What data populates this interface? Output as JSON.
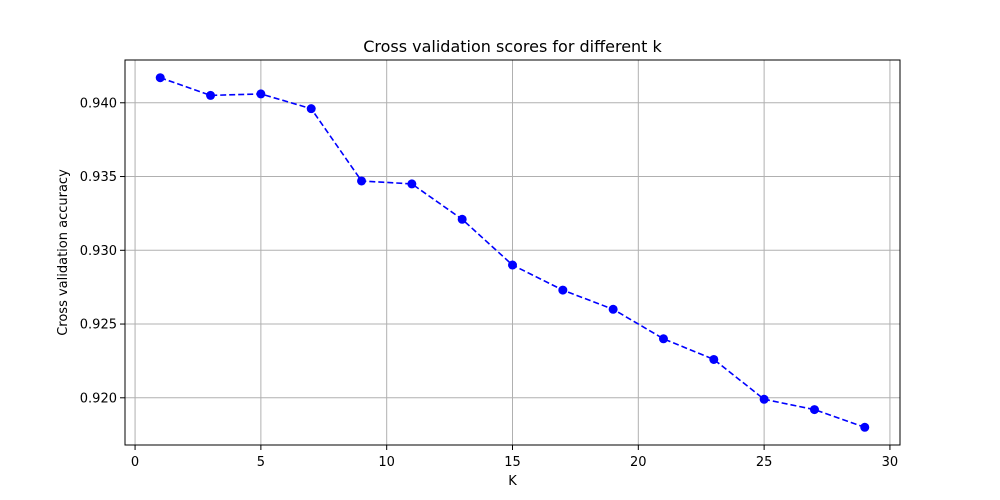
{
  "chart_data": {
    "type": "line",
    "title": "Cross validation scores for different k",
    "xlabel": "K",
    "ylabel": "Cross validation accuracy",
    "xlim": [
      -0.4,
      30.4
    ],
    "ylim": [
      0.9168,
      0.9429
    ],
    "xticks": [
      0,
      5,
      10,
      15,
      20,
      25,
      30
    ],
    "yticks": [
      0.92,
      0.925,
      0.93,
      0.935,
      0.94
    ],
    "xtick_labels": [
      "0",
      "5",
      "10",
      "15",
      "20",
      "25",
      "30"
    ],
    "ytick_labels": [
      "0.920",
      "0.925",
      "0.930",
      "0.935",
      "0.940"
    ],
    "grid": true,
    "series": [
      {
        "style": "dashed line with circle markers",
        "color": "#0000ff",
        "x": [
          1,
          3,
          5,
          7,
          9,
          11,
          13,
          15,
          17,
          19,
          21,
          23,
          25,
          27,
          29
        ],
        "y": [
          0.9417,
          0.9405,
          0.9406,
          0.9396,
          0.9347,
          0.9345,
          0.9321,
          0.929,
          0.9273,
          0.926,
          0.924,
          0.9226,
          0.9199,
          0.9192,
          0.918
        ]
      }
    ]
  }
}
